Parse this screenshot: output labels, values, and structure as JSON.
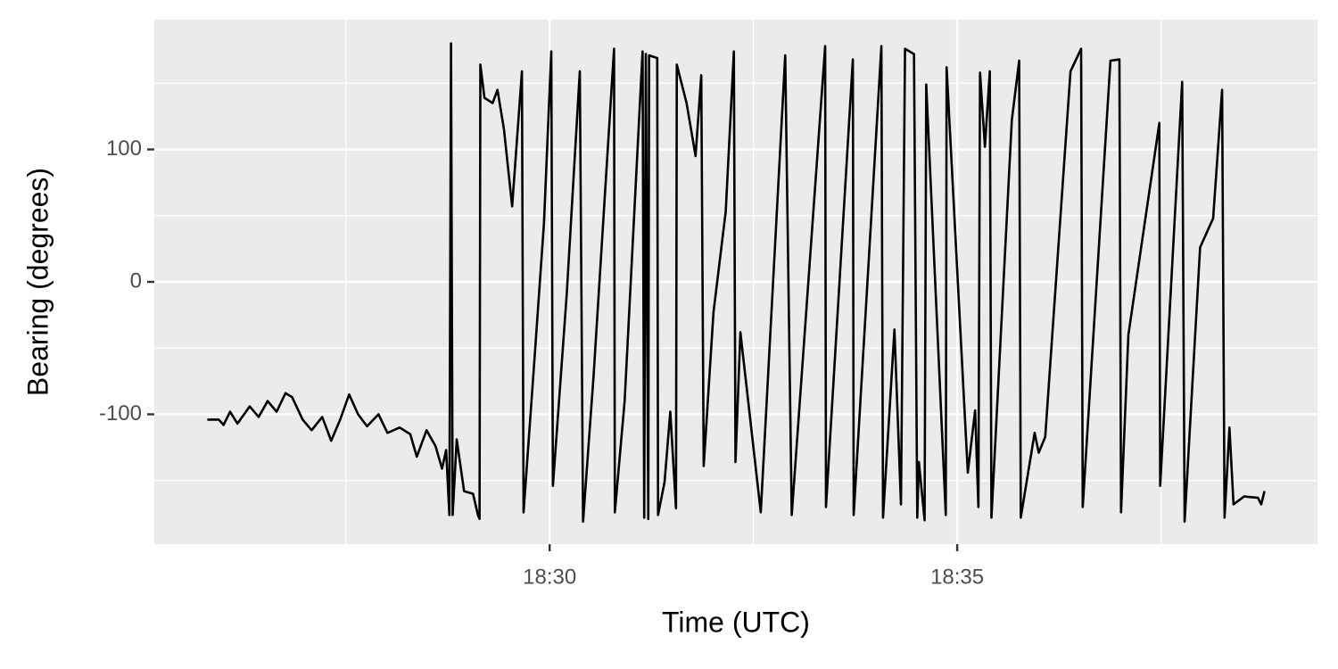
{
  "chart_data": {
    "type": "line",
    "xlabel": "Time (UTC)",
    "ylabel": "Bearing (degrees)",
    "color": "#000000",
    "grid": true,
    "xlim": [
      25.15,
      39.42
    ],
    "ylim": [
      -198,
      198
    ],
    "xticks": [
      {
        "value": 30,
        "label": "18:30"
      },
      {
        "value": 35,
        "label": "18:35"
      }
    ],
    "yticks": [
      -100,
      0,
      100
    ],
    "x_minor_grid": [
      27.5,
      32.5,
      37.5
    ],
    "y_minor_grid": [
      -150,
      -50,
      50,
      150
    ],
    "x": [
      25.8,
      25.94,
      26.0,
      26.08,
      26.17,
      26.32,
      26.43,
      26.54,
      26.65,
      26.76,
      26.84,
      26.97,
      27.08,
      27.21,
      27.32,
      27.43,
      27.54,
      27.65,
      27.76,
      27.9,
      28.01,
      28.16,
      28.29,
      28.37,
      28.49,
      28.6,
      28.68,
      28.73,
      28.77,
      28.79,
      28.81,
      28.86,
      28.95,
      29.06,
      29.12,
      29.14,
      29.15,
      29.2,
      29.3,
      29.36,
      29.44,
      29.54,
      29.66,
      29.68,
      29.82,
      29.93,
      30.02,
      30.04,
      30.21,
      30.37,
      30.41,
      30.54,
      30.79,
      30.8,
      30.92,
      31.14,
      31.16,
      31.18,
      31.21,
      31.22,
      31.32,
      31.33,
      31.41,
      31.48,
      31.55,
      31.56,
      31.68,
      31.79,
      31.86,
      31.89,
      32.01,
      32.16,
      32.26,
      32.28,
      32.34,
      32.59,
      32.89,
      32.97,
      33.38,
      33.39,
      33.72,
      33.73,
      34.07,
      34.09,
      34.23,
      34.31,
      34.36,
      34.47,
      34.51,
      34.53,
      34.6,
      34.62,
      34.86,
      34.87,
      35.13,
      35.22,
      35.26,
      35.28,
      35.34,
      35.4,
      35.42,
      35.67,
      35.76,
      35.78,
      35.95,
      36.0,
      36.08,
      36.39,
      36.52,
      36.54,
      36.88,
      36.99,
      37.01,
      37.1,
      37.48,
      37.49,
      37.76,
      37.79,
      37.98,
      38.14,
      38.25,
      38.28,
      38.34,
      38.39,
      38.52,
      38.69,
      38.73,
      38.77
    ],
    "values": [
      -104,
      -104,
      -108,
      -98,
      -107,
      -94,
      -102,
      -90,
      -98,
      -84,
      -87,
      -104,
      -112,
      -102,
      -120,
      -104,
      -85,
      -100,
      -109,
      -100,
      -114,
      -110,
      -115,
      -132,
      -112,
      -124,
      -141,
      -127,
      -176,
      180,
      -176,
      -119,
      -158,
      -160,
      -176,
      -179,
      164,
      139,
      135,
      145,
      115,
      57,
      159,
      -174,
      -53,
      44,
      174,
      -154,
      -9,
      159,
      -181,
      -70,
      176,
      -174,
      -90,
      174,
      -178,
      172,
      -179,
      171,
      169,
      -176,
      -151,
      -98,
      -171,
      164,
      135,
      95,
      156,
      -139,
      -23,
      53,
      174,
      -136,
      -38,
      -174,
      171,
      -176,
      178,
      -170,
      168,
      -176,
      178,
      -178,
      -36,
      -168,
      176,
      172,
      -178,
      -136,
      -180,
      149,
      -176,
      162,
      -144,
      -97,
      -170,
      158,
      102,
      159,
      -178,
      122,
      167,
      -178,
      -114,
      -129,
      -117,
      159,
      176,
      -170,
      167,
      168,
      -174,
      -40,
      120,
      -154,
      151,
      -181,
      26,
      48,
      145,
      -178,
      -110,
      -168,
      -162,
      -163,
      -168,
      -158
    ]
  }
}
